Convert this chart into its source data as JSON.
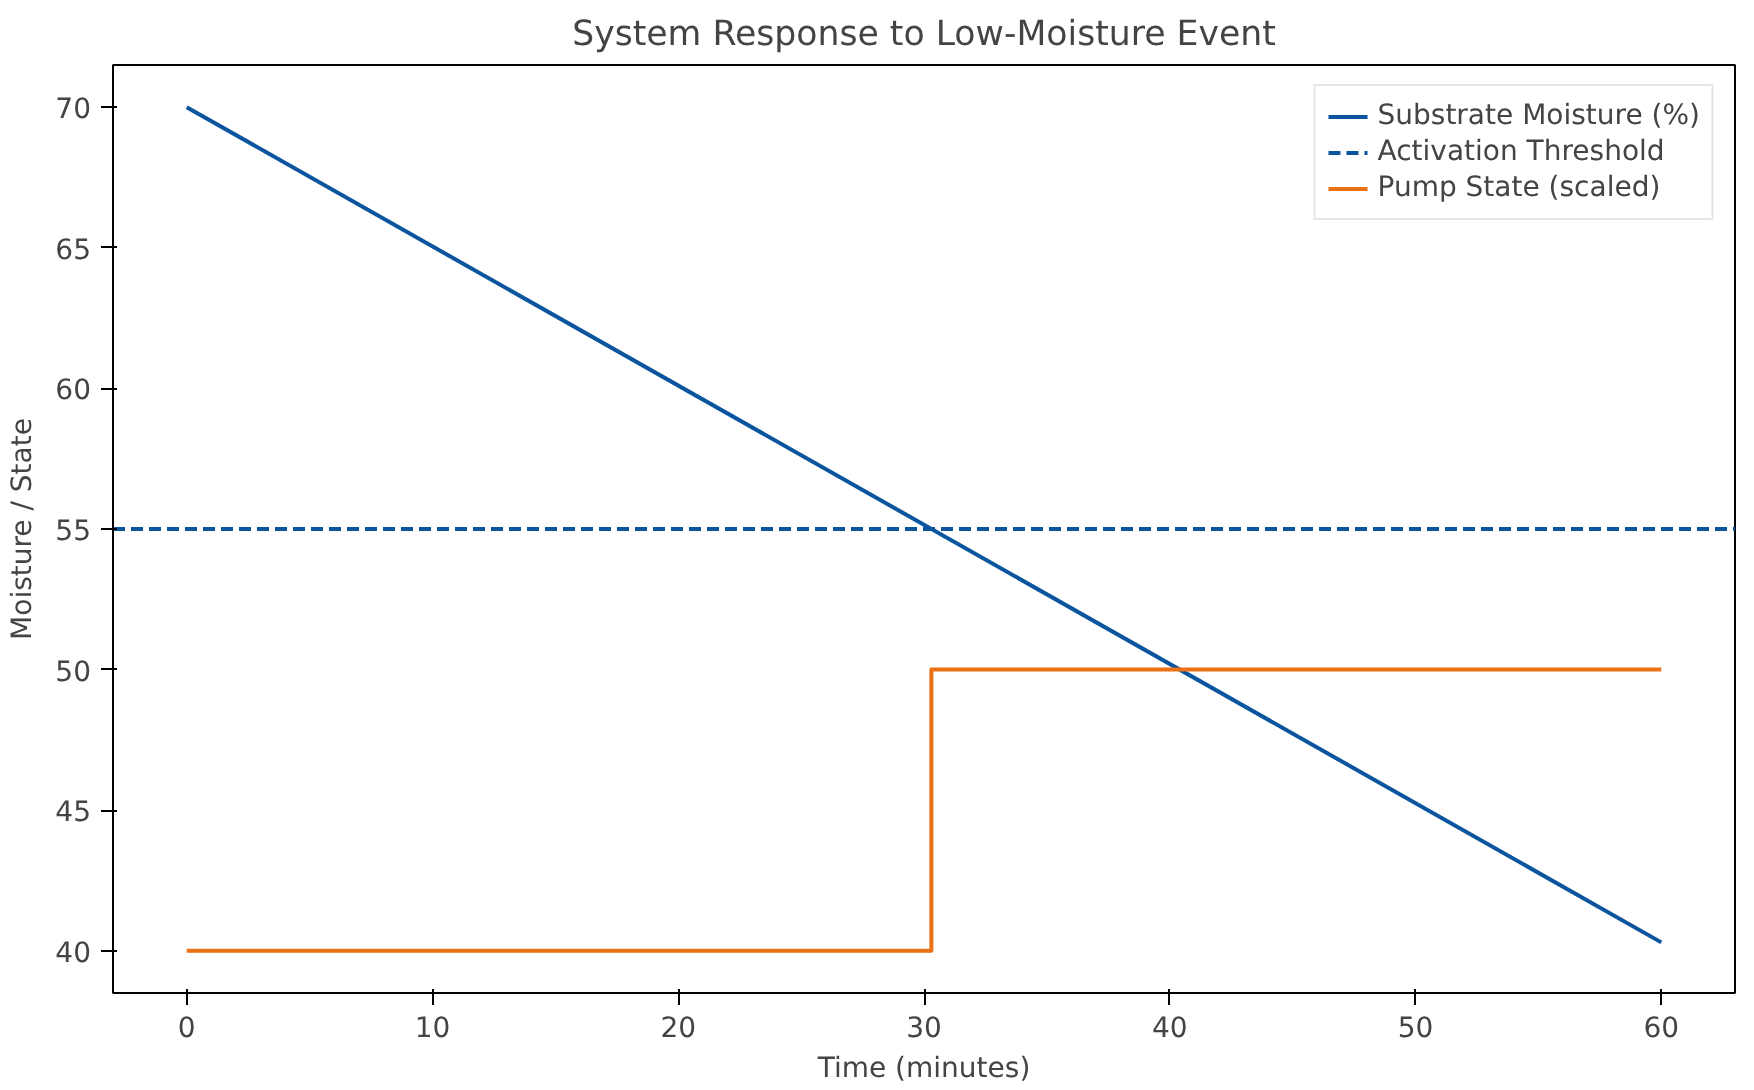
{
  "chart_data": {
    "type": "line",
    "title": "System Response to Low-Moisture Event",
    "xlabel": "Time (minutes)",
    "ylabel": "Moisture / State",
    "xlim": [
      -3,
      63
    ],
    "ylim": [
      38.5,
      71.5
    ],
    "xticks": [
      0,
      10,
      20,
      30,
      40,
      50,
      60
    ],
    "yticks": [
      40,
      45,
      50,
      55,
      60,
      65,
      70
    ],
    "series": [
      {
        "name": "Substrate Moisture (%)",
        "color": "#0b559f",
        "x": [
          0,
          60
        ],
        "values": [
          70,
          40.3
        ]
      },
      {
        "name": "Pump State (scaled)",
        "type": "step",
        "color": "#ec7014",
        "x": [
          0,
          30.3,
          60
        ],
        "values": [
          40,
          50,
          50
        ]
      }
    ],
    "ref_lines": [
      {
        "axis": "y",
        "value": 55,
        "label": "Activation Threshold",
        "color": "#0b559f",
        "line_style": "dashed"
      }
    ],
    "legend": "top right",
    "grid": false,
    "line_style": "solid",
    "marker": "none"
  }
}
